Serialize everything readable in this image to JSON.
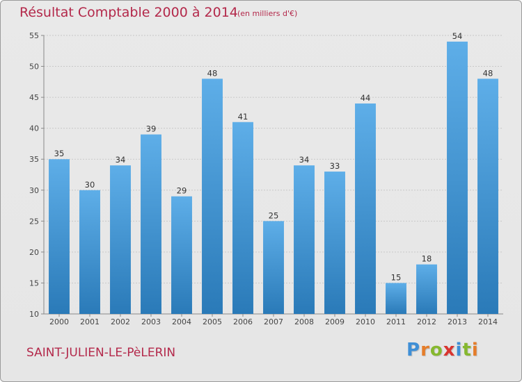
{
  "chart_data": {
    "type": "bar",
    "title": "Résultat Comptable 2000 à 2014",
    "subtitle": "(en milliers d'€)",
    "categories": [
      "2000",
      "2001",
      "2002",
      "2003",
      "2004",
      "2005",
      "2006",
      "2007",
      "2008",
      "2009",
      "2010",
      "2011",
      "2012",
      "2013",
      "2014"
    ],
    "values": [
      35,
      30,
      34,
      39,
      29,
      48,
      41,
      25,
      34,
      33,
      44,
      15,
      18,
      54,
      48
    ],
    "ylim": [
      10,
      55
    ],
    "yticks": [
      10,
      15,
      20,
      25,
      30,
      35,
      40,
      45,
      50,
      55
    ],
    "xlabel": "",
    "ylabel": "",
    "grid": true,
    "colors": {
      "bar_top": "#5eaee8",
      "bar_bottom": "#2a7ab8",
      "title": "#b3284a"
    }
  },
  "footer": {
    "commune": "SAINT-JULIEN-LE-PèLERIN"
  },
  "logo": {
    "text": "Proxiti",
    "letters": [
      "P",
      "r",
      "o",
      "x",
      "i",
      "t",
      "i"
    ],
    "letter_colors": [
      "#3f8fd6",
      "#e57d2a",
      "#86b82f",
      "#d9352f",
      "#3f8fd6",
      "#86b82f",
      "#e57d2a"
    ]
  }
}
